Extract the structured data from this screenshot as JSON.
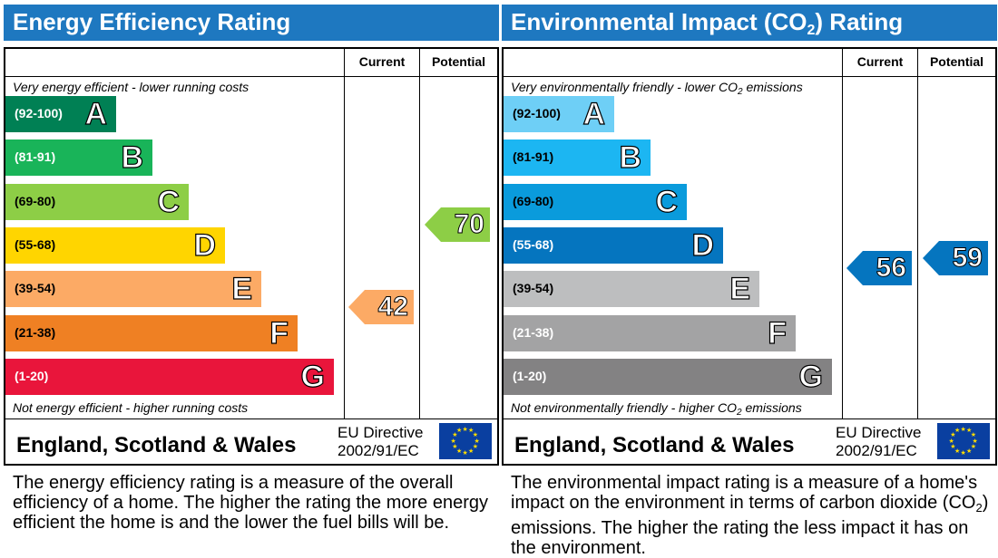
{
  "chart_data": [
    {
      "type": "bar",
      "title": "Energy Efficiency Rating",
      "columns": [
        "Current",
        "Potential"
      ],
      "top_note": "Very energy efficient - lower running costs",
      "bottom_note": "Not energy efficient - higher running costs",
      "bands": [
        {
          "range": "(92-100)",
          "letter": "A",
          "color": "#008054"
        },
        {
          "range": "(81-91)",
          "letter": "B",
          "color": "#19b459"
        },
        {
          "range": "(69-80)",
          "letter": "C",
          "color": "#8dce46"
        },
        {
          "range": "(55-68)",
          "letter": "D",
          "color": "#ffd500"
        },
        {
          "range": "(39-54)",
          "letter": "E",
          "color": "#fcaa65"
        },
        {
          "range": "(21-38)",
          "letter": "F",
          "color": "#ef8023"
        },
        {
          "range": "(1-20)",
          "letter": "G",
          "color": "#e9153b"
        }
      ],
      "current": {
        "value": "42",
        "band": "E",
        "color": "#fcaa65"
      },
      "potential": {
        "value": "70",
        "band": "C",
        "color": "#8dce46"
      },
      "region": "England, Scotland & Wales",
      "directive_line1": "EU Directive",
      "directive_line2": "2002/91/EC",
      "flag_icon": "eu-flag-icon",
      "description": "The energy efficiency rating is a measure of the overall efficiency of a home. The higher the rating the more energy efficient the home is and the lower the fuel bills will be."
    },
    {
      "type": "bar",
      "title_pre": "Environmental Impact (CO",
      "title_sub": "2",
      "title_post": ") Rating",
      "columns": [
        "Current",
        "Potential"
      ],
      "top_note_pre": "Very environmentally friendly - lower CO",
      "top_note_sub": "2",
      "top_note_post": " emissions",
      "bottom_note_pre": "Not environmentally friendly - higher CO",
      "bottom_note_sub": "2",
      "bottom_note_post": " emissions",
      "bands": [
        {
          "range": "(92-100)",
          "letter": "A",
          "color": "#6ecff6"
        },
        {
          "range": "(81-91)",
          "letter": "B",
          "color": "#1cb6f2"
        },
        {
          "range": "(69-80)",
          "letter": "C",
          "color": "#0a9bdc"
        },
        {
          "range": "(55-68)",
          "letter": "D",
          "color": "#0575bf"
        },
        {
          "range": "(39-54)",
          "letter": "E",
          "color": "#bdbebf"
        },
        {
          "range": "(21-38)",
          "letter": "F",
          "color": "#a3a3a4"
        },
        {
          "range": "(1-20)",
          "letter": "G",
          "color": "#838283"
        }
      ],
      "current": {
        "value": "56",
        "band": "D",
        "color": "#0575bf"
      },
      "potential": {
        "value": "59",
        "band": "D",
        "color": "#0575bf"
      },
      "region": "England, Scotland & Wales",
      "directive_line1": "EU Directive",
      "directive_line2": "2002/91/EC",
      "flag_icon": "eu-flag-icon",
      "description_pre": "The environmental impact rating is a measure of a home's impact on the environment in terms of carbon dioxide (CO",
      "description_sub": "2",
      "description_post": ") emissions. The higher the rating the less impact it has on the environment."
    }
  ]
}
